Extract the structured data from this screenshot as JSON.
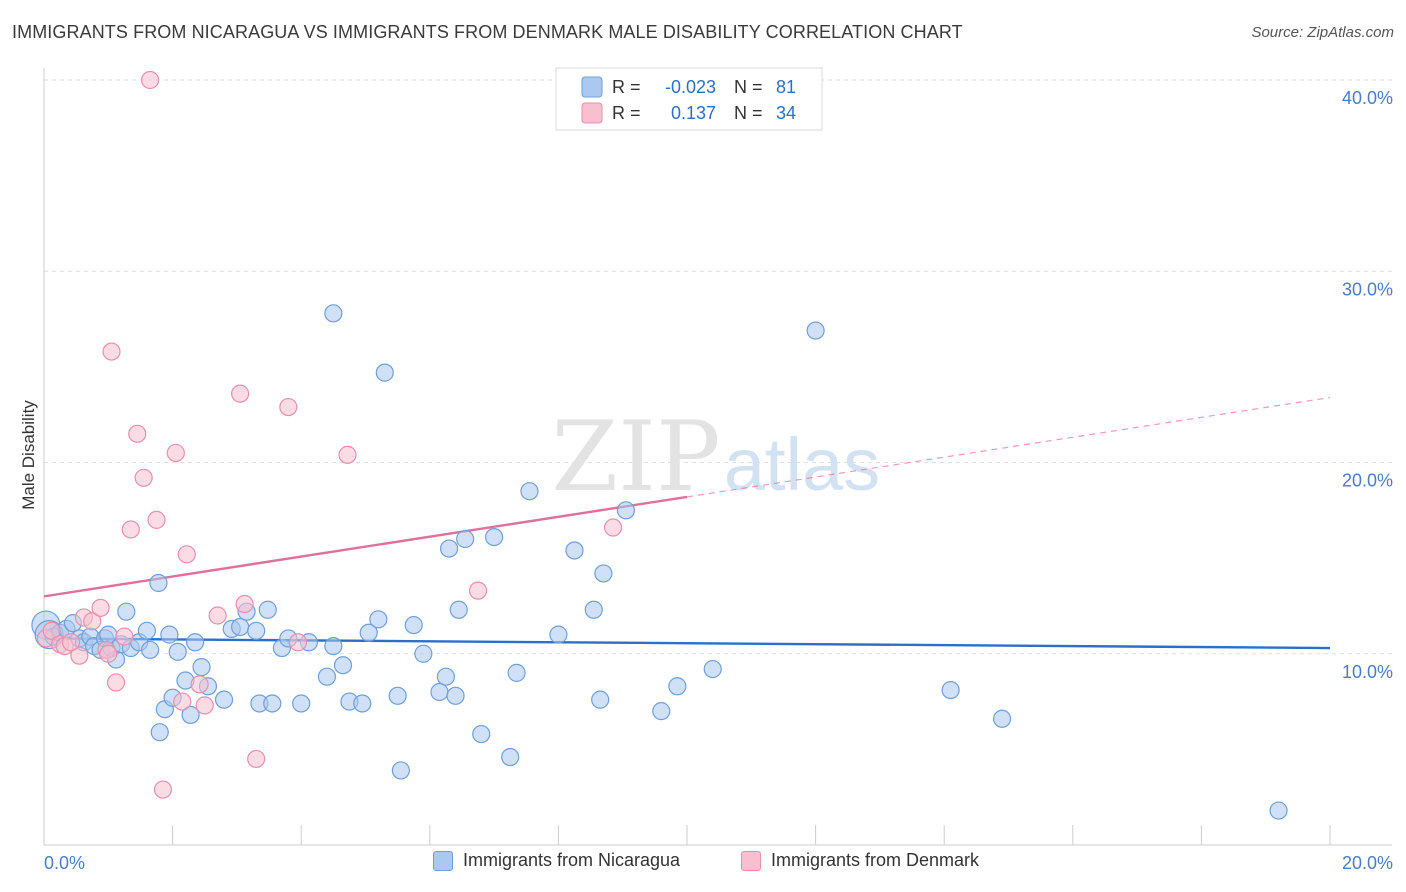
{
  "header": {
    "title": "IMMIGRANTS FROM NICARAGUA VS IMMIGRANTS FROM DENMARK MALE DISABILITY CORRELATION CHART",
    "source": "Source: ZipAtlas.com"
  },
  "watermark": {
    "zip": "ZIP",
    "atlas": "atlas"
  },
  "colors": {
    "blue_fill": "#aac8f0",
    "blue_stroke": "#6f9fd8",
    "blue_line": "#2a6fca",
    "pink_fill": "#f7bfd0",
    "pink_stroke": "#e590ad",
    "pink_line": "#e0709a",
    "axis_text": "#4a7cc7",
    "grid": "#dddddd"
  },
  "legend_top": {
    "rows": [
      {
        "series": "Immigrants from Nicaragua",
        "r_label": "R =",
        "r_value": "-0.023",
        "n_label": "N =",
        "n_value": "81"
      },
      {
        "series": "Immigrants from Denmark",
        "r_label": "R =",
        "r_value": "0.137",
        "n_label": "N =",
        "n_value": "34"
      }
    ]
  },
  "chart_data": {
    "type": "scatter",
    "title": "IMMIGRANTS FROM NICARAGUA VS IMMIGRANTS FROM DENMARK MALE DISABILITY CORRELATION CHART",
    "xlabel": "",
    "ylabel": "Male Disability",
    "xlim": [
      0,
      20
    ],
    "ylim": [
      0,
      40
    ],
    "x_tick_labels": [
      "0.0%",
      "20.0%"
    ],
    "y_ticks": [
      10,
      20,
      30,
      40
    ],
    "y_tick_labels": [
      "10.0%",
      "20.0%",
      "30.0%",
      "40.0%"
    ],
    "grid": true,
    "legend": "top-center",
    "series": [
      {
        "name": "Immigrants from Nicaragua",
        "color": "blue",
        "R": -0.023,
        "N": 81,
        "trend": {
          "x0": 0,
          "y0": 10.8,
          "x1": 20,
          "y1": 10.3,
          "dashed_from": null
        },
        "points": [
          [
            0.03,
            11.5
          ],
          [
            0.08,
            11.0
          ],
          [
            0.15,
            10.9
          ],
          [
            0.25,
            11.1
          ],
          [
            0.35,
            11.3
          ],
          [
            0.45,
            11.6
          ],
          [
            0.55,
            10.8
          ],
          [
            0.62,
            10.6
          ],
          [
            0.72,
            10.9
          ],
          [
            0.78,
            10.4
          ],
          [
            0.88,
            10.2
          ],
          [
            0.95,
            10.8
          ],
          [
            1.05,
            10.3
          ],
          [
            1.12,
            9.7
          ],
          [
            1.2,
            10.5
          ],
          [
            1.28,
            12.2
          ],
          [
            1.35,
            10.3
          ],
          [
            1.48,
            10.6
          ],
          [
            1.6,
            11.2
          ],
          [
            1.65,
            10.2
          ],
          [
            1.78,
            13.7
          ],
          [
            1.88,
            7.1
          ],
          [
            1.95,
            11.0
          ],
          [
            2.0,
            7.7
          ],
          [
            2.08,
            10.1
          ],
          [
            2.2,
            8.6
          ],
          [
            2.28,
            6.8
          ],
          [
            2.35,
            10.6
          ],
          [
            2.45,
            9.3
          ],
          [
            2.55,
            8.3
          ],
          [
            1.8,
            5.9
          ],
          [
            2.8,
            7.6
          ],
          [
            2.92,
            11.3
          ],
          [
            3.05,
            11.4
          ],
          [
            3.15,
            12.2
          ],
          [
            3.3,
            11.2
          ],
          [
            3.35,
            7.4
          ],
          [
            3.48,
            12.3
          ],
          [
            3.55,
            7.4
          ],
          [
            3.7,
            10.3
          ],
          [
            4.0,
            7.4
          ],
          [
            4.12,
            10.6
          ],
          [
            4.4,
            8.8
          ],
          [
            4.5,
            10.4
          ],
          [
            4.65,
            9.4
          ],
          [
            4.75,
            7.5
          ],
          [
            4.95,
            7.4
          ],
          [
            5.05,
            11.1
          ],
          [
            5.2,
            11.8
          ],
          [
            5.3,
            24.7
          ],
          [
            5.5,
            7.8
          ],
          [
            5.55,
            3.9
          ],
          [
            5.75,
            11.5
          ],
          [
            5.9,
            10.0
          ],
          [
            6.15,
            8.0
          ],
          [
            6.25,
            8.8
          ],
          [
            6.4,
            7.8
          ],
          [
            6.45,
            12.3
          ],
          [
            6.3,
            15.5
          ],
          [
            6.55,
            16.0
          ],
          [
            6.8,
            5.8
          ],
          [
            7.0,
            16.1
          ],
          [
            7.25,
            4.6
          ],
          [
            7.35,
            9.0
          ],
          [
            7.55,
            18.5
          ],
          [
            8.0,
            11.0
          ],
          [
            8.25,
            15.4
          ],
          [
            8.55,
            12.3
          ],
          [
            8.65,
            7.6
          ],
          [
            8.7,
            14.2
          ],
          [
            9.05,
            17.5
          ],
          [
            9.6,
            7.0
          ],
          [
            9.85,
            8.3
          ],
          [
            10.4,
            9.2
          ],
          [
            12.0,
            26.9
          ],
          [
            14.1,
            8.1
          ],
          [
            14.9,
            6.6
          ],
          [
            19.2,
            1.8
          ],
          [
            4.5,
            27.8
          ],
          [
            1.0,
            11.0
          ],
          [
            3.8,
            10.8
          ]
        ]
      },
      {
        "name": "Immigrants from Denmark",
        "color": "pink",
        "R": 0.137,
        "N": 34,
        "trend": {
          "x0": 0,
          "y0": 13.0,
          "x1": 20,
          "y1": 23.4,
          "dashed_from": 10.0
        },
        "points": [
          [
            0.03,
            10.8
          ],
          [
            0.12,
            11.2
          ],
          [
            0.25,
            10.5
          ],
          [
            0.32,
            10.4
          ],
          [
            0.55,
            9.9
          ],
          [
            0.62,
            11.9
          ],
          [
            0.75,
            11.7
          ],
          [
            0.88,
            12.4
          ],
          [
            0.97,
            10.2
          ],
          [
            1.05,
            25.8
          ],
          [
            1.12,
            8.5
          ],
          [
            1.25,
            10.9
          ],
          [
            1.35,
            16.5
          ],
          [
            1.45,
            21.5
          ],
          [
            1.55,
            19.2
          ],
          [
            1.65,
            40.0
          ],
          [
            1.75,
            17.0
          ],
          [
            1.85,
            2.9
          ],
          [
            2.05,
            20.5
          ],
          [
            2.15,
            7.5
          ],
          [
            2.22,
            15.2
          ],
          [
            2.42,
            8.4
          ],
          [
            2.7,
            12.0
          ],
          [
            3.05,
            23.6
          ],
          [
            3.12,
            12.6
          ],
          [
            3.3,
            4.5
          ],
          [
            3.8,
            22.9
          ],
          [
            3.95,
            10.6
          ],
          [
            4.72,
            20.4
          ],
          [
            6.75,
            13.3
          ],
          [
            8.85,
            16.6
          ],
          [
            0.42,
            10.6
          ],
          [
            1.0,
            10.0
          ],
          [
            2.5,
            7.3
          ]
        ]
      }
    ]
  }
}
